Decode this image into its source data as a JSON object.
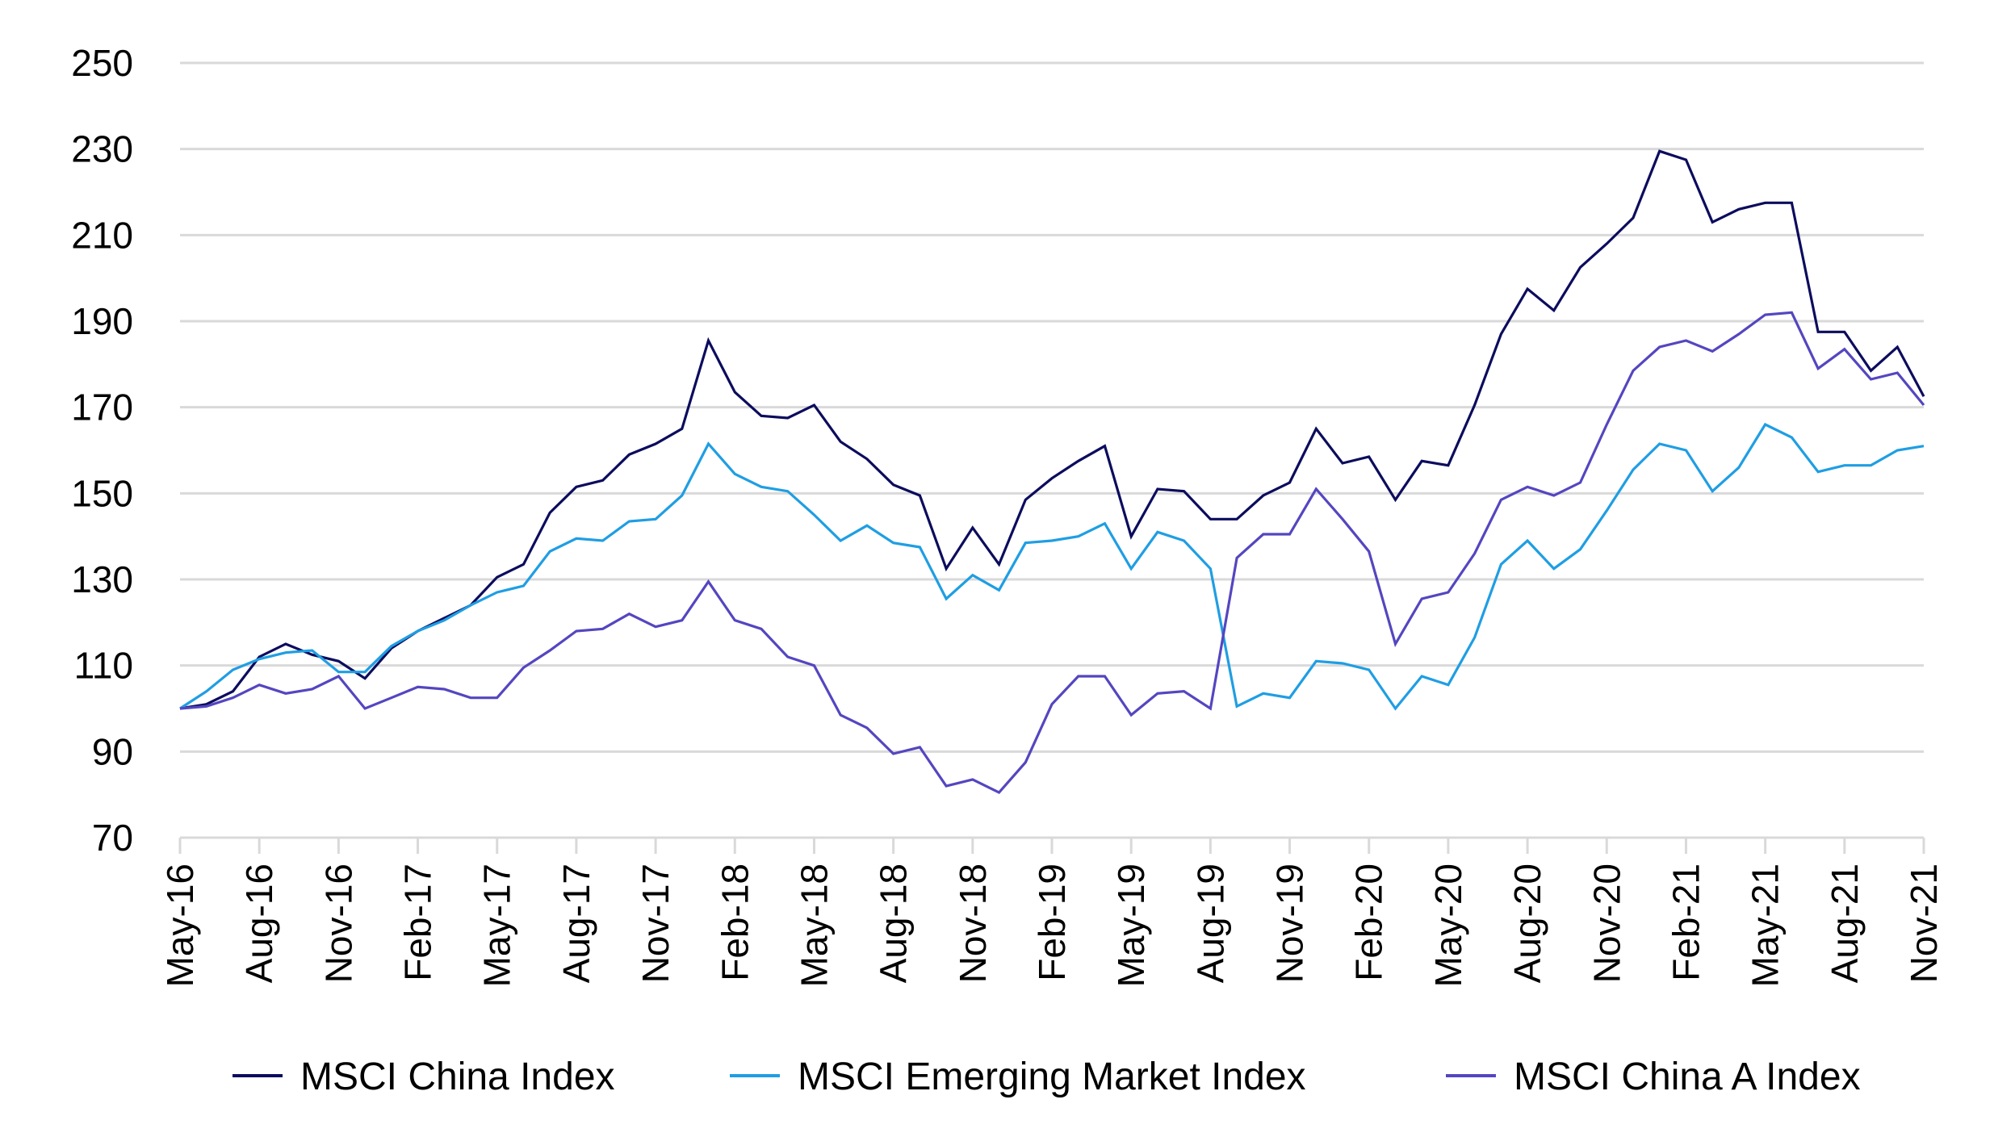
{
  "chart_data": {
    "type": "line",
    "title": "",
    "xlabel": "",
    "ylabel": "",
    "ylim": [
      70,
      250
    ],
    "yticks": [
      70,
      90,
      110,
      130,
      150,
      170,
      190,
      210,
      230,
      250
    ],
    "grid": true,
    "legend_position": "bottom",
    "x": [
      "May-16",
      "Jun-16",
      "Jul-16",
      "Aug-16",
      "Sep-16",
      "Oct-16",
      "Nov-16",
      "Dec-16",
      "Jan-17",
      "Feb-17",
      "Mar-17",
      "Apr-17",
      "May-17",
      "Jun-17",
      "Jul-17",
      "Aug-17",
      "Sep-17",
      "Oct-17",
      "Nov-17",
      "Dec-17",
      "Jan-18",
      "Feb-18",
      "Mar-18",
      "Apr-18",
      "May-18",
      "Jun-18",
      "Jul-18",
      "Aug-18",
      "Sep-18",
      "Oct-18",
      "Nov-18",
      "Dec-18",
      "Jan-19",
      "Feb-19",
      "Mar-19",
      "Apr-19",
      "May-19",
      "Jun-19",
      "Jul-19",
      "Aug-19",
      "Sep-19",
      "Oct-19",
      "Nov-19",
      "Dec-19",
      "Jan-20",
      "Feb-20",
      "Mar-20",
      "Apr-20",
      "May-20",
      "Jun-20",
      "Jul-20",
      "Aug-20",
      "Sep-20",
      "Oct-20",
      "Nov-20",
      "Dec-20",
      "Jan-21",
      "Feb-21",
      "Mar-21",
      "Apr-21",
      "May-21",
      "Jun-21",
      "Jul-21",
      "Aug-21",
      "Sep-21",
      "Oct-21",
      "Nov-21"
    ],
    "xtick_labels": [
      "May-16",
      "Aug-16",
      "Nov-16",
      "Feb-17",
      "May-17",
      "Aug-17",
      "Nov-17",
      "Feb-18",
      "May-18",
      "Aug-18",
      "Nov-18",
      "Feb-19",
      "May-19",
      "Aug-19",
      "Nov-19",
      "Feb-20",
      "May-20",
      "Aug-20",
      "Nov-20",
      "Feb-21",
      "May-21",
      "Aug-21",
      "Nov-21"
    ],
    "series": [
      {
        "name": "MSCI China Index",
        "color": "#0c0c5e",
        "values": [
          100,
          101,
          104,
          112,
          115,
          112.5,
          111,
          107,
          114,
          118,
          121,
          124,
          130.5,
          133.5,
          145.5,
          151.5,
          153,
          159,
          161.5,
          165,
          185.5,
          173.5,
          168,
          167.5,
          170.5,
          162,
          158,
          152,
          149.5,
          132.5,
          142,
          133.5,
          148.5,
          153.5,
          157.5,
          161,
          140,
          151,
          150.5,
          144,
          144,
          149.5,
          152.5,
          165,
          157,
          158.5,
          148.5,
          157.5,
          156.5,
          170.5,
          187,
          197.5,
          192.5,
          202.5,
          208,
          214,
          229.5,
          227.5,
          213,
          216,
          217.5,
          217.5,
          187.5,
          187.5,
          178.5,
          184,
          172.5
        ]
      },
      {
        "name": "MSCI Emerging Market Index",
        "color": "#1f9ee3",
        "values": [
          100,
          104,
          109,
          111.5,
          113,
          113.5,
          108.5,
          108.5,
          114.5,
          118,
          120.5,
          124,
          127,
          128.5,
          136.5,
          139.5,
          139,
          143.5,
          144,
          149.5,
          161.5,
          154.5,
          151.5,
          150.5,
          145,
          139,
          142.5,
          138.5,
          137.5,
          125.5,
          131,
          127.5,
          138.5,
          139,
          140,
          143,
          132.5,
          141,
          139,
          132.5,
          100.5,
          103.5,
          102.5,
          111,
          110.5,
          109,
          100,
          107.5,
          105.5,
          116.5,
          133.5,
          139,
          132.5,
          137,
          146,
          155.5,
          161.5,
          160,
          150.5,
          156,
          166,
          163,
          155,
          156.5,
          156.5,
          160,
          161
        ]
      },
      {
        "name": "MSCI China A Index",
        "color": "#5446c0",
        "values": [
          100,
          100.5,
          102.5,
          105.5,
          103.5,
          104.5,
          107.5,
          100,
          102.5,
          105,
          104.5,
          102.5,
          102.5,
          109.5,
          113.5,
          118,
          118.5,
          122,
          119,
          120.5,
          129.5,
          120.5,
          118.5,
          112,
          110,
          98.5,
          95.5,
          89.5,
          91,
          82,
          83.5,
          80.5,
          87.5,
          101,
          107.5,
          107.5,
          98.5,
          103.5,
          104,
          100,
          135,
          140.5,
          140.5,
          151,
          144,
          136.5,
          115,
          125.5,
          127,
          136,
          148.5,
          151.5,
          149.5,
          152.5,
          166,
          178.5,
          184,
          185.5,
          183,
          187,
          191.5,
          192,
          179,
          183.5,
          176.5,
          178,
          170.5
        ]
      }
    ],
    "grid_color": "#d9d9d9",
    "axis_color": "#d9d9d9"
  }
}
